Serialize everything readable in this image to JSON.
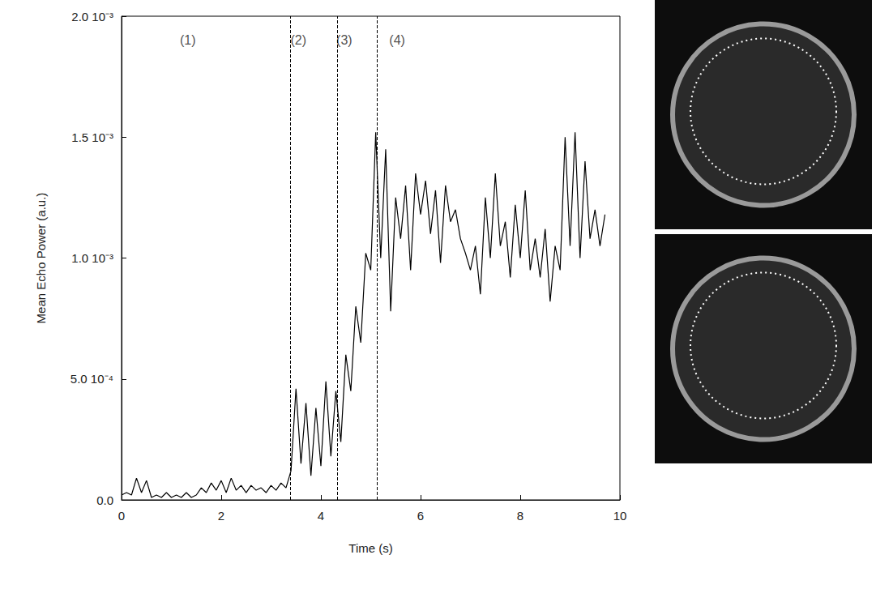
{
  "chart_data": {
    "type": "line",
    "xlabel": "Time (s)",
    "ylabel": "Mean Echo Power (a.u.)",
    "color": "#000000",
    "grid": false,
    "xlim": [
      0,
      10
    ],
    "xticks": [
      0,
      2,
      4,
      6,
      8,
      10
    ],
    "ylim": [
      0,
      0.002
    ],
    "yticks": [
      {
        "value": 0,
        "label": "0.0"
      },
      {
        "value": 0.0005,
        "label": "5.0 10⁻⁴"
      },
      {
        "value": 0.001,
        "label": "1.0 10⁻³"
      },
      {
        "value": 0.0015,
        "label": "1.5 10⁻³"
      },
      {
        "value": 0.002,
        "label": "2.0 10⁻³"
      }
    ],
    "vlines": [
      3.38,
      4.33,
      5.12
    ],
    "annotations": [
      {
        "text": "(1)",
        "x": 1.33,
        "y": 0.0019
      },
      {
        "text": "(2)",
        "x": 3.55,
        "y": 0.0019
      },
      {
        "text": "(3)",
        "x": 4.47,
        "y": 0.0019
      },
      {
        "text": "(4)",
        "x": 5.53,
        "y": 0.0019
      }
    ],
    "x": [
      0.0,
      0.1,
      0.2,
      0.3,
      0.4,
      0.5,
      0.6,
      0.7,
      0.8,
      0.9,
      1.0,
      1.1,
      1.2,
      1.3,
      1.4,
      1.5,
      1.6,
      1.7,
      1.8,
      1.9,
      2.0,
      2.1,
      2.2,
      2.3,
      2.4,
      2.5,
      2.6,
      2.7,
      2.8,
      2.9,
      3.0,
      3.1,
      3.2,
      3.3,
      3.4,
      3.5,
      3.6,
      3.7,
      3.8,
      3.9,
      4.0,
      4.1,
      4.2,
      4.3,
      4.4,
      4.5,
      4.6,
      4.7,
      4.8,
      4.9,
      5.0,
      5.1,
      5.2,
      5.3,
      5.4,
      5.5,
      5.6,
      5.7,
      5.8,
      5.9,
      6.0,
      6.1,
      6.2,
      6.3,
      6.4,
      6.5,
      6.6,
      6.7,
      6.8,
      6.9,
      7.0,
      7.1,
      7.2,
      7.3,
      7.4,
      7.5,
      7.6,
      7.7,
      7.8,
      7.9,
      8.0,
      8.1,
      8.2,
      8.3,
      8.4,
      8.5,
      8.6,
      8.7,
      8.8,
      8.9,
      9.0,
      9.1,
      9.2,
      9.3,
      9.4,
      9.5,
      9.6,
      9.7
    ],
    "values": [
      2e-05,
      3e-05,
      2e-05,
      9e-05,
      3e-05,
      8e-05,
      1e-05,
      2e-05,
      1e-05,
      3e-05,
      1e-05,
      2e-05,
      1e-05,
      3e-05,
      1e-05,
      2e-05,
      5e-05,
      3e-05,
      7e-05,
      4e-05,
      8e-05,
      3e-05,
      9e-05,
      4e-05,
      6e-05,
      3e-05,
      6e-05,
      4e-05,
      5e-05,
      3e-05,
      6e-05,
      4e-05,
      7e-05,
      5e-05,
      0.00012,
      0.00046,
      0.00015,
      0.0004,
      0.0001,
      0.00038,
      0.00014,
      0.00049,
      0.00018,
      0.00045,
      0.00024,
      0.0006,
      0.00045,
      0.0008,
      0.00065,
      0.00102,
      0.00095,
      0.00152,
      0.001,
      0.00145,
      0.00078,
      0.00125,
      0.00108,
      0.0013,
      0.00095,
      0.00135,
      0.00118,
      0.00132,
      0.0011,
      0.00128,
      0.00098,
      0.0013,
      0.00115,
      0.0012,
      0.00108,
      0.00102,
      0.00095,
      0.00105,
      0.00085,
      0.00125,
      0.001,
      0.00135,
      0.00105,
      0.00115,
      0.00092,
      0.00122,
      0.001,
      0.00128,
      0.00095,
      0.00108,
      0.00092,
      0.00112,
      0.00082,
      0.00105,
      0.00095,
      0.0015,
      0.00105,
      0.00152,
      0.001,
      0.0014,
      0.00108,
      0.0012,
      0.00105,
      0.00118
    ]
  }
}
